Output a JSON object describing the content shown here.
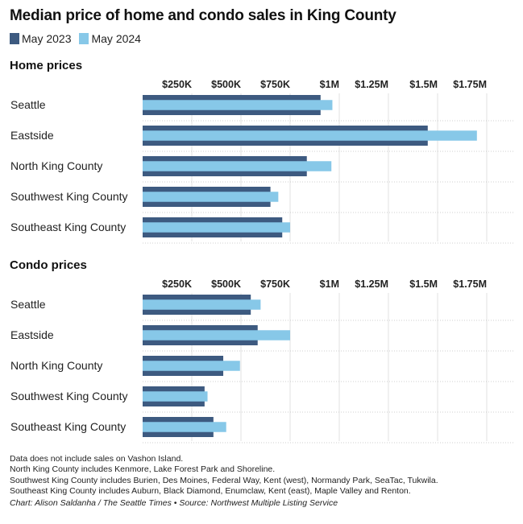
{
  "title": "Median price of home and condo sales in King County",
  "legend": [
    {
      "label": "May 2023",
      "color": "#3d5a80"
    },
    {
      "label": "May 2024",
      "color": "#87c8e8"
    }
  ],
  "chart_data": [
    {
      "type": "bar",
      "title": "Home prices",
      "categories": [
        "Seattle",
        "Eastside",
        "North King County",
        "Southwest King County",
        "Southeast King County"
      ],
      "series": [
        {
          "name": "May 2023",
          "values": [
            905000,
            1450000,
            835000,
            650000,
            710000
          ]
        },
        {
          "name": "May 2024",
          "values": [
            965000,
            1700000,
            960000,
            690000,
            750000
          ]
        }
      ],
      "ticks": [
        250000,
        500000,
        750000,
        1000000,
        1250000,
        1500000,
        1750000
      ],
      "tick_labels": [
        "$250K",
        "$500K",
        "$750K",
        "$1M",
        "$1.25M",
        "$1.5M",
        "$1.75M"
      ],
      "xlim": [
        0,
        1900000
      ]
    },
    {
      "type": "bar",
      "title": "Condo prices",
      "categories": [
        "Seattle",
        "Eastside",
        "North King County",
        "Southwest King County",
        "Southeast King County"
      ],
      "series": [
        {
          "name": "May 2023",
          "values": [
            550000,
            585000,
            410000,
            315000,
            360000
          ]
        },
        {
          "name": "May 2024",
          "values": [
            600000,
            750000,
            495000,
            330000,
            425000
          ]
        }
      ],
      "ticks": [
        250000,
        500000,
        750000,
        1000000,
        1250000,
        1500000,
        1750000
      ],
      "tick_labels": [
        "$250K",
        "$500K",
        "$750K",
        "$1M",
        "$1.25M",
        "$1.5M",
        "$1.75M"
      ],
      "xlim": [
        0,
        1900000
      ]
    }
  ],
  "footnotes": [
    "Data does not include sales on Vashon Island.",
    "North King County includes Kenmore, Lake Forest Park and Shoreline.",
    "Southwest King County includes Burien, Des Moines, Federal Way, Kent (west), Normandy Park, SeaTac, Tukwila.",
    "Southeast King County includes Auburn, Black Diamond, Enumclaw, Kent (east), Maple Valley and Renton."
  ],
  "credit": "Chart: Alison Saldanha / The Seattle Times • Source: Northwest Multiple Listing Service"
}
